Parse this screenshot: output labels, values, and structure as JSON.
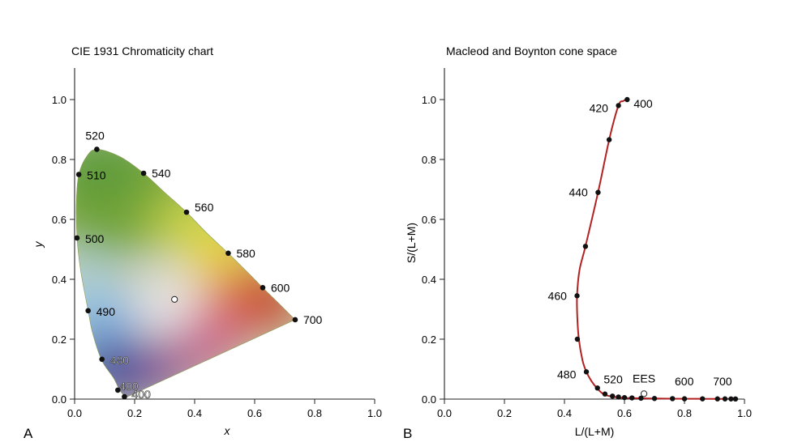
{
  "chart_data": [
    {
      "type": "scatter",
      "panel_letter": "A",
      "title": "CIE 1931 Chromaticity chart",
      "xlabel": "x",
      "ylabel": "y",
      "xlim": [
        0.0,
        1.0
      ],
      "ylim": [
        0.0,
        1.0
      ],
      "xticks": [
        "0.0",
        "0.2",
        "0.4",
        "0.6",
        "0.8",
        "1.0"
      ],
      "yticks": [
        "0.0",
        "0.2",
        "0.4",
        "0.6",
        "0.8",
        "1.0"
      ],
      "grid": false,
      "colored_gamut": true,
      "locus": [
        [
          0.17,
          0.005
        ],
        [
          0.15,
          0.03
        ],
        [
          0.13,
          0.07
        ],
        [
          0.09,
          0.13
        ],
        [
          0.06,
          0.22
        ],
        [
          0.045,
          0.295
        ],
        [
          0.02,
          0.43
        ],
        [
          0.008,
          0.538
        ],
        [
          0.006,
          0.66
        ],
        [
          0.014,
          0.75
        ],
        [
          0.04,
          0.81
        ],
        [
          0.074,
          0.834
        ],
        [
          0.15,
          0.81
        ],
        [
          0.23,
          0.754
        ],
        [
          0.3,
          0.69
        ],
        [
          0.373,
          0.624
        ],
        [
          0.44,
          0.555
        ],
        [
          0.512,
          0.487
        ],
        [
          0.58,
          0.42
        ],
        [
          0.627,
          0.372
        ],
        [
          0.68,
          0.32
        ],
        [
          0.735,
          0.265
        ]
      ],
      "points": [
        {
          "label": "520",
          "x": 0.074,
          "y": 0.834
        },
        {
          "label": "510",
          "x": 0.014,
          "y": 0.75
        },
        {
          "label": "540",
          "x": 0.23,
          "y": 0.754
        },
        {
          "label": "560",
          "x": 0.373,
          "y": 0.624
        },
        {
          "label": "500",
          "x": 0.008,
          "y": 0.538
        },
        {
          "label": "580",
          "x": 0.512,
          "y": 0.487
        },
        {
          "label": "600",
          "x": 0.627,
          "y": 0.372
        },
        {
          "label": "490",
          "x": 0.045,
          "y": 0.295
        },
        {
          "label": "700",
          "x": 0.735,
          "y": 0.265
        },
        {
          "label": "480",
          "x": 0.091,
          "y": 0.133
        },
        {
          "label": "400",
          "x": 0.144,
          "y": 0.03
        },
        {
          "label": "400",
          "x": 0.166,
          "y": 0.008
        }
      ],
      "white_point": {
        "x": 0.333,
        "y": 0.333
      }
    },
    {
      "type": "line",
      "panel_letter": "B",
      "title": "Macleod and Boynton cone space",
      "xlabel": "L/(L+M)",
      "ylabel": "S/(L+M)",
      "xlim": [
        0.0,
        1.0
      ],
      "ylim": [
        0.0,
        1.0
      ],
      "xticks": [
        "0.0",
        "0.2",
        "0.4",
        "0.6",
        "0.8",
        "1.0"
      ],
      "yticks": [
        "0.0",
        "0.2",
        "0.4",
        "0.6",
        "0.8",
        "1.0"
      ],
      "grid": false,
      "line_color": "#b22222",
      "curve": [
        [
          0.609,
          1.0
        ],
        [
          0.595,
          0.995
        ],
        [
          0.58,
          0.98
        ],
        [
          0.55,
          0.87
        ],
        [
          0.512,
          0.69
        ],
        [
          0.47,
          0.51
        ],
        [
          0.45,
          0.43
        ],
        [
          0.442,
          0.345
        ],
        [
          0.443,
          0.27
        ],
        [
          0.448,
          0.2
        ],
        [
          0.46,
          0.13
        ],
        [
          0.473,
          0.091
        ],
        [
          0.49,
          0.06
        ],
        [
          0.51,
          0.035
        ],
        [
          0.53,
          0.017
        ],
        [
          0.56,
          0.008
        ],
        [
          0.6,
          0.004
        ],
        [
          0.7,
          0.002
        ],
        [
          0.8,
          0.001
        ],
        [
          0.9,
          0.0009
        ],
        [
          0.97,
          0.0005
        ]
      ],
      "markers": [
        [
          0.609,
          1.0
        ],
        [
          0.58,
          0.98
        ],
        [
          0.549,
          0.866
        ],
        [
          0.512,
          0.69
        ],
        [
          0.47,
          0.51
        ],
        [
          0.442,
          0.345
        ],
        [
          0.443,
          0.2
        ],
        [
          0.473,
          0.091
        ],
        [
          0.51,
          0.037
        ],
        [
          0.535,
          0.017
        ],
        [
          0.56,
          0.01
        ],
        [
          0.58,
          0.007
        ],
        [
          0.6,
          0.005
        ],
        [
          0.625,
          0.004
        ],
        [
          0.655,
          0.003
        ],
        [
          0.7,
          0.002
        ],
        [
          0.76,
          0.0015
        ],
        [
          0.8,
          0.001
        ],
        [
          0.86,
          0.0009
        ],
        [
          0.91,
          0.0008
        ],
        [
          0.935,
          0.0007
        ],
        [
          0.955,
          0.0006
        ],
        [
          0.97,
          0.0005
        ]
      ],
      "labels": [
        {
          "text": "400",
          "x": 0.609,
          "y": 1.0,
          "dx": 8,
          "dy": 10
        },
        {
          "text": "420",
          "x": 0.58,
          "y": 0.98,
          "dx": -36,
          "dy": 8
        },
        {
          "text": "440",
          "x": 0.512,
          "y": 0.69,
          "dx": -36,
          "dy": 5
        },
        {
          "text": "460",
          "x": 0.442,
          "y": 0.345,
          "dx": -36,
          "dy": 5
        },
        {
          "text": "480",
          "x": 0.473,
          "y": 0.091,
          "dx": -36,
          "dy": 8
        },
        {
          "text": "520",
          "x": 0.52,
          "y": 0.037,
          "dx": 4,
          "dy": -6
        },
        {
          "text": "EES",
          "x": 0.665,
          "y": 0.028,
          "dx": -14,
          "dy": -10
        },
        {
          "text": "600",
          "x": 0.8,
          "y": 0.03,
          "dx": -12,
          "dy": -6
        },
        {
          "text": "700",
          "x": 0.96,
          "y": 0.03,
          "dx": -24,
          "dy": -6
        }
      ],
      "equal_energy_point": {
        "x": 0.665,
        "y": 0.018
      }
    }
  ]
}
